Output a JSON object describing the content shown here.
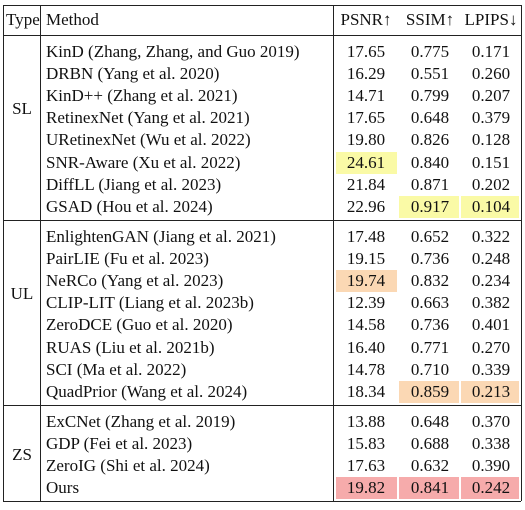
{
  "header": {
    "type": "Type",
    "method": "Method",
    "columns": [
      "PSNR↑",
      "SSIM↑",
      "LPIPS↓"
    ]
  },
  "groups": [
    {
      "type": "SL",
      "highlight_color": "#fafaa6",
      "highlights": [
        [
          5,
          0
        ],
        [
          7,
          1
        ],
        [
          7,
          2
        ]
      ],
      "rows": [
        [
          "KinD (Zhang, Zhang, and Guo 2019)",
          "17.65",
          "0.775",
          "0.171"
        ],
        [
          "DRBN (Yang et al. 2020)",
          "16.29",
          "0.551",
          "0.260"
        ],
        [
          "KinD++ (Zhang et al. 2021)",
          "14.71",
          "0.799",
          "0.207"
        ],
        [
          "RetinexNet (Yang et al. 2021)",
          "17.65",
          "0.648",
          "0.379"
        ],
        [
          "URetinexNet (Wu et al. 2022)",
          "19.80",
          "0.826",
          "0.128"
        ],
        [
          "SNR-Aware (Xu et al. 2022)",
          "24.61",
          "0.840",
          "0.151"
        ],
        [
          "DiffLL (Jiang et al. 2023)",
          "21.84",
          "0.871",
          "0.202"
        ],
        [
          "GSAD (Hou et al. 2024)",
          "22.96",
          "0.917",
          "0.104"
        ]
      ]
    },
    {
      "type": "UL",
      "highlight_color": "#fbd8b4",
      "highlights": [
        [
          2,
          0
        ],
        [
          7,
          1
        ],
        [
          7,
          2
        ]
      ],
      "rows": [
        [
          "EnlightenGAN (Jiang et al. 2021)",
          "17.48",
          "0.652",
          "0.322"
        ],
        [
          "PairLIE (Fu et al. 2023)",
          "19.15",
          "0.736",
          "0.248"
        ],
        [
          "NeRCo (Yang et al. 2023)",
          "19.74",
          "0.832",
          "0.234"
        ],
        [
          "CLIP-LIT (Liang et al. 2023b)",
          "12.39",
          "0.663",
          "0.382"
        ],
        [
          "ZeroDCE (Guo et al. 2020)",
          "14.58",
          "0.736",
          "0.401"
        ],
        [
          "RUAS (Liu et al. 2021b)",
          "16.40",
          "0.771",
          "0.270"
        ],
        [
          "SCI (Ma et al. 2022)",
          "14.78",
          "0.710",
          "0.339"
        ],
        [
          "QuadPrior (Wang et al. 2024)",
          "18.34",
          "0.859",
          "0.213"
        ]
      ]
    },
    {
      "type": "ZS",
      "highlight_color": "#f6abab",
      "highlights": [
        [
          3,
          0
        ],
        [
          3,
          1
        ],
        [
          3,
          2
        ]
      ],
      "rows": [
        [
          "ExCNet (Zhang et al. 2019)",
          "13.88",
          "0.648",
          "0.370"
        ],
        [
          "GDP (Fei et al. 2023)",
          "15.83",
          "0.688",
          "0.338"
        ],
        [
          "ZeroIG (Shi et al. 2024)",
          "17.63",
          "0.632",
          "0.390"
        ],
        [
          "Ours",
          "19.82",
          "0.841",
          "0.242"
        ]
      ]
    }
  ]
}
